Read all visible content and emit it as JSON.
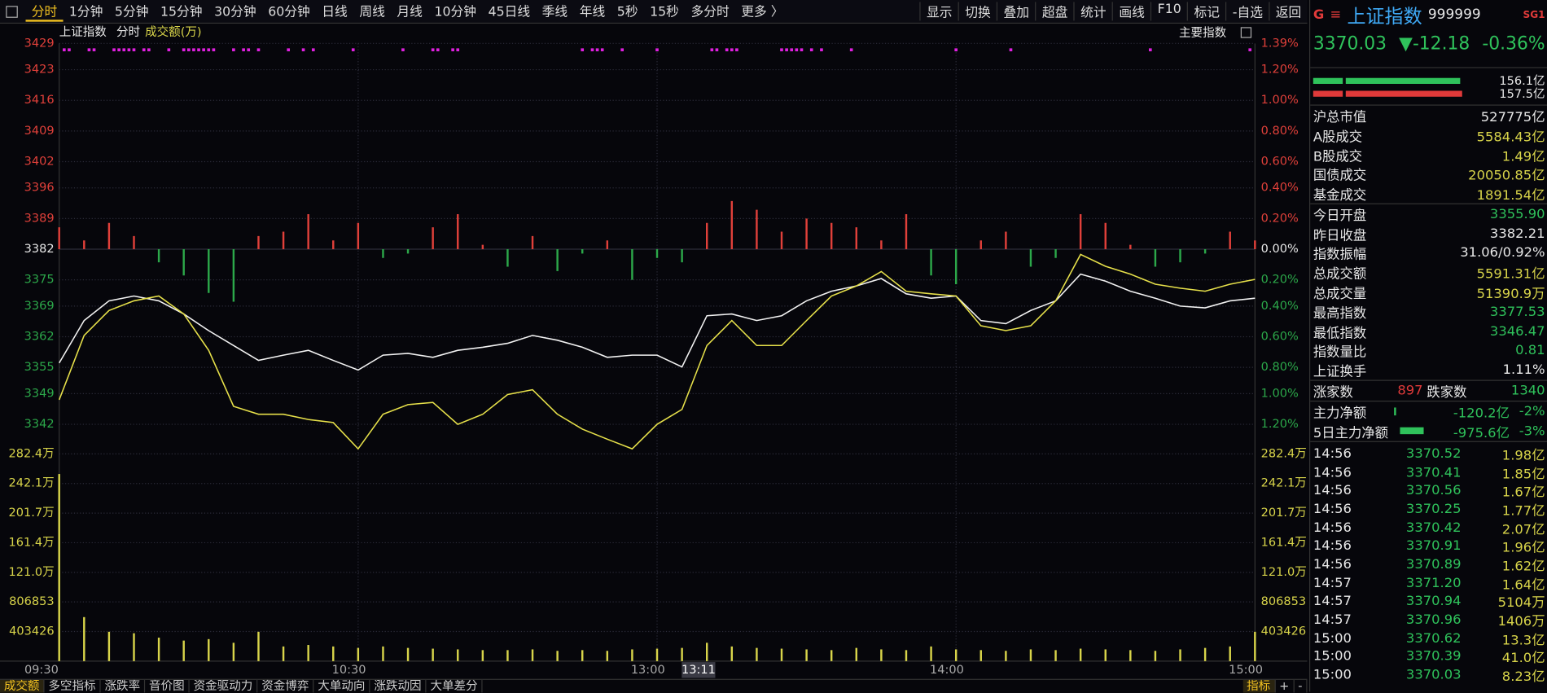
{
  "toolbar": {
    "periods": [
      "分时",
      "1分钟",
      "5分钟",
      "15分钟",
      "30分钟",
      "60分钟",
      "日线",
      "周线",
      "月线",
      "10分钟",
      "45日线",
      "季线",
      "年线",
      "5秒",
      "15秒",
      "多分时",
      "更多 〉"
    ],
    "tools": [
      "显示",
      "切换",
      "叠加",
      "超盘",
      "统计",
      "画线",
      "F10",
      "标记",
      "-自选",
      "返回"
    ]
  },
  "chart_header": {
    "mode": "分时",
    "main_index": "主要指数"
  },
  "cursor_time": "13:11",
  "chart_data": {
    "type": "line",
    "x": [
      0,
      5,
      10,
      15,
      20,
      25,
      30,
      35,
      40,
      45,
      50,
      55,
      60,
      65,
      70,
      75,
      80,
      85,
      90,
      95,
      100,
      105,
      110,
      115,
      120,
      125,
      130,
      135,
      140,
      145,
      150,
      155,
      160,
      165,
      170,
      175,
      180,
      185,
      190,
      195,
      200,
      205,
      210,
      215,
      220,
      225,
      230,
      235,
      240
    ],
    "xlim": [
      0,
      240
    ],
    "xticks": [
      {
        "value": 0,
        "label": "09:30"
      },
      {
        "value": 60,
        "label": "10:30"
      },
      {
        "value": 120,
        "label": "13:00"
      },
      {
        "value": 180,
        "label": "14:00"
      },
      {
        "value": 240,
        "label": "15:00"
      }
    ],
    "ylim": [
      3342,
      3429
    ],
    "yticks": [
      3429,
      3423,
      3416,
      3409,
      3402,
      3396,
      3389,
      3382,
      3375,
      3369,
      3362,
      3355,
      3349,
      3342
    ],
    "pct_labels": [
      "1.39%",
      "1.20%",
      "1.00%",
      "0.80%",
      "0.60%",
      "0.40%",
      "0.20%",
      "0.00%",
      "0.20%",
      "0.40%",
      "0.60%",
      "0.80%",
      "1.00%",
      "1.20%"
    ],
    "grid": true,
    "series": [
      {
        "name": "上证指数",
        "color": "#f2f2f2",
        "values": [
          3356.0,
          3365.7,
          3370.2,
          3371.3,
          3370.2,
          3367.2,
          3363.4,
          3360.0,
          3356.6,
          3357.8,
          3358.9,
          3356.6,
          3354.4,
          3357.8,
          3358.2,
          3357.3,
          3358.9,
          3359.6,
          3360.5,
          3362.3,
          3361.2,
          3359.6,
          3357.3,
          3357.8,
          3357.8,
          3355.1,
          3366.8,
          3367.2,
          3365.7,
          3366.8,
          3370.2,
          3372.4,
          3373.6,
          3375.3,
          3371.8,
          3370.8,
          3371.3,
          3365.7,
          3365.0,
          3368.0,
          3370.2,
          3376.3,
          3374.7,
          3372.4,
          3370.8,
          3369.0,
          3368.6,
          3370.2,
          3370.8
        ]
      },
      {
        "color": "#e6e04a",
        "values": [
          3347.6,
          3362.3,
          3368.0,
          3370.2,
          3371.3,
          3367.2,
          3358.9,
          3346.1,
          3344.3,
          3344.3,
          3343.1,
          3342.4,
          3336.4,
          3344.3,
          3346.5,
          3347.0,
          3342.0,
          3344.3,
          3348.8,
          3349.9,
          3344.3,
          3340.9,
          3338.6,
          3336.4,
          3342.0,
          3345.4,
          3360.0,
          3365.7,
          3360.0,
          3360.0,
          3365.7,
          3371.3,
          3373.6,
          3376.9,
          3372.4,
          3371.8,
          3371.3,
          3364.5,
          3363.4,
          3364.5,
          3370.2,
          3380.8,
          3378.1,
          3376.3,
          3374.0,
          3373.1,
          3372.4,
          3374.0,
          3375.1
        ]
      }
    ],
    "breadth": {
      "color_up": "#e0403a",
      "color_down": "#2ca84a",
      "values": [
        3387,
        3384,
        3388,
        3385,
        3379,
        3376,
        3372,
        3370,
        3385,
        3386,
        3390,
        3384,
        3388,
        3380,
        3381,
        3387,
        3390,
        3383,
        3378,
        3385,
        3377,
        3381,
        3384,
        3375,
        3380,
        3379,
        3388,
        3393,
        3391,
        3386,
        3389,
        3388,
        3387,
        3384,
        3390,
        3376,
        3374,
        3384,
        3386,
        3378,
        3380,
        3390,
        3388,
        3383,
        3378,
        3379,
        3381,
        3386,
        3384
      ]
    },
    "volume": {
      "name": "成交额(万)",
      "color": "#d8d44a",
      "values": [
        255,
        60,
        40,
        38,
        32,
        28,
        30,
        25,
        40,
        20,
        22,
        20,
        18,
        20,
        18,
        17,
        16,
        15,
        15,
        16,
        14,
        15,
        14,
        16,
        17,
        18,
        25,
        20,
        18,
        17,
        16,
        15,
        18,
        16,
        15,
        20,
        16,
        15,
        14,
        16,
        15,
        17,
        16,
        15,
        14,
        16,
        18,
        20,
        40
      ]
    },
    "vol_ylim": [
      0,
      282.4
    ],
    "vol_yticks": [
      {
        "value": 282.4,
        "label": "282.4万"
      },
      {
        "value": 242.1,
        "label": "242.1万"
      },
      {
        "value": 201.7,
        "label": "201.7万"
      },
      {
        "value": 161.4,
        "label": "161.4万"
      },
      {
        "value": 121.0,
        "label": "121.0万"
      },
      {
        "value": 80.6853,
        "label": "806853"
      },
      {
        "value": 40.3426,
        "label": "403426"
      }
    ],
    "signals": {
      "color": "#e020e0",
      "x": [
        1,
        2,
        6,
        7,
        11,
        12,
        13,
        14,
        15,
        17,
        18,
        22,
        25,
        26,
        27,
        28,
        29,
        30,
        31,
        35,
        37,
        38,
        40,
        46,
        49,
        51,
        59,
        69,
        75,
        76,
        79,
        80,
        105,
        107,
        108,
        109,
        113,
        120,
        131,
        132,
        134,
        135,
        136,
        145,
        146,
        147,
        148,
        149,
        151,
        153,
        159,
        180,
        191,
        219,
        239
      ]
    }
  },
  "quote": {
    "flag": "G",
    "name": "上证指数",
    "code": "999999",
    "tag": "SG1",
    "price": "3370.03",
    "change": "▼-12.18",
    "change_pct": "-0.36%",
    "flow_out": "156.1亿",
    "flow_in": "157.5亿",
    "stats": [
      {
        "label": "沪总市值",
        "value": "527775亿",
        "color": "#e8e8e8"
      },
      {
        "label": "A股成交",
        "value": "5584.43亿",
        "color": "#d8d44a"
      },
      {
        "label": "B股成交",
        "value": "1.49亿",
        "color": "#d8d44a"
      },
      {
        "label": "国债成交",
        "value": "20050.85亿",
        "color": "#d8d44a"
      },
      {
        "label": "基金成交",
        "value": "1891.54亿",
        "color": "#d8d44a"
      },
      {
        "label": "今日开盘",
        "value": "3355.90",
        "color": "#2fc25b"
      },
      {
        "label": "昨日收盘",
        "value": "3382.21",
        "color": "#e8e8e8"
      },
      {
        "label": "指数振幅",
        "value": "31.06/0.92%",
        "color": "#e8e8e8"
      },
      {
        "label": "总成交额",
        "value": "5591.31亿",
        "color": "#d8d44a"
      },
      {
        "label": "总成交量",
        "value": "51390.9万",
        "color": "#d8d44a"
      },
      {
        "label": "最高指数",
        "value": "3377.53",
        "color": "#2fc25b"
      },
      {
        "label": "最低指数",
        "value": "3346.47",
        "color": "#2fc25b"
      },
      {
        "label": "指数量比",
        "value": "0.81",
        "color": "#2fc25b"
      },
      {
        "label": "上证换手",
        "value": "1.11%",
        "color": "#e8e8e8"
      }
    ],
    "up_label": "涨家数",
    "up_count": "897",
    "down_label": "跌家数",
    "down_count": "1340",
    "main_flow": {
      "label": "主力净额",
      "value": "-120.2亿",
      "pct": "-2%"
    },
    "main_flow_5d": {
      "label": "5日主力净额",
      "value": "-975.6亿",
      "pct": "-3%"
    },
    "trades": [
      [
        "14:56",
        "3370.52",
        "1.98亿"
      ],
      [
        "14:56",
        "3370.41",
        "1.85亿"
      ],
      [
        "14:56",
        "3370.56",
        "1.67亿"
      ],
      [
        "14:56",
        "3370.25",
        "1.77亿"
      ],
      [
        "14:56",
        "3370.42",
        "2.07亿"
      ],
      [
        "14:56",
        "3370.91",
        "1.96亿"
      ],
      [
        "14:56",
        "3370.89",
        "1.62亿"
      ],
      [
        "14:57",
        "3371.20",
        "1.64亿"
      ],
      [
        "14:57",
        "3370.94",
        "5104万"
      ],
      [
        "14:57",
        "3370.96",
        "1406万"
      ],
      [
        "15:00",
        "3370.62",
        "13.3亿"
      ],
      [
        "15:00",
        "3370.39",
        "41.0亿"
      ],
      [
        "15:00",
        "3370.03",
        "8.23亿"
      ]
    ]
  },
  "bottom_tabs": [
    "成交额",
    "多空指标",
    "涨跌率",
    "音价图",
    "资金驱动力",
    "资金博弈",
    "大单动向",
    "涨跌动因",
    "大单差分"
  ],
  "bottom_tools": [
    "指标",
    "+",
    "-"
  ]
}
